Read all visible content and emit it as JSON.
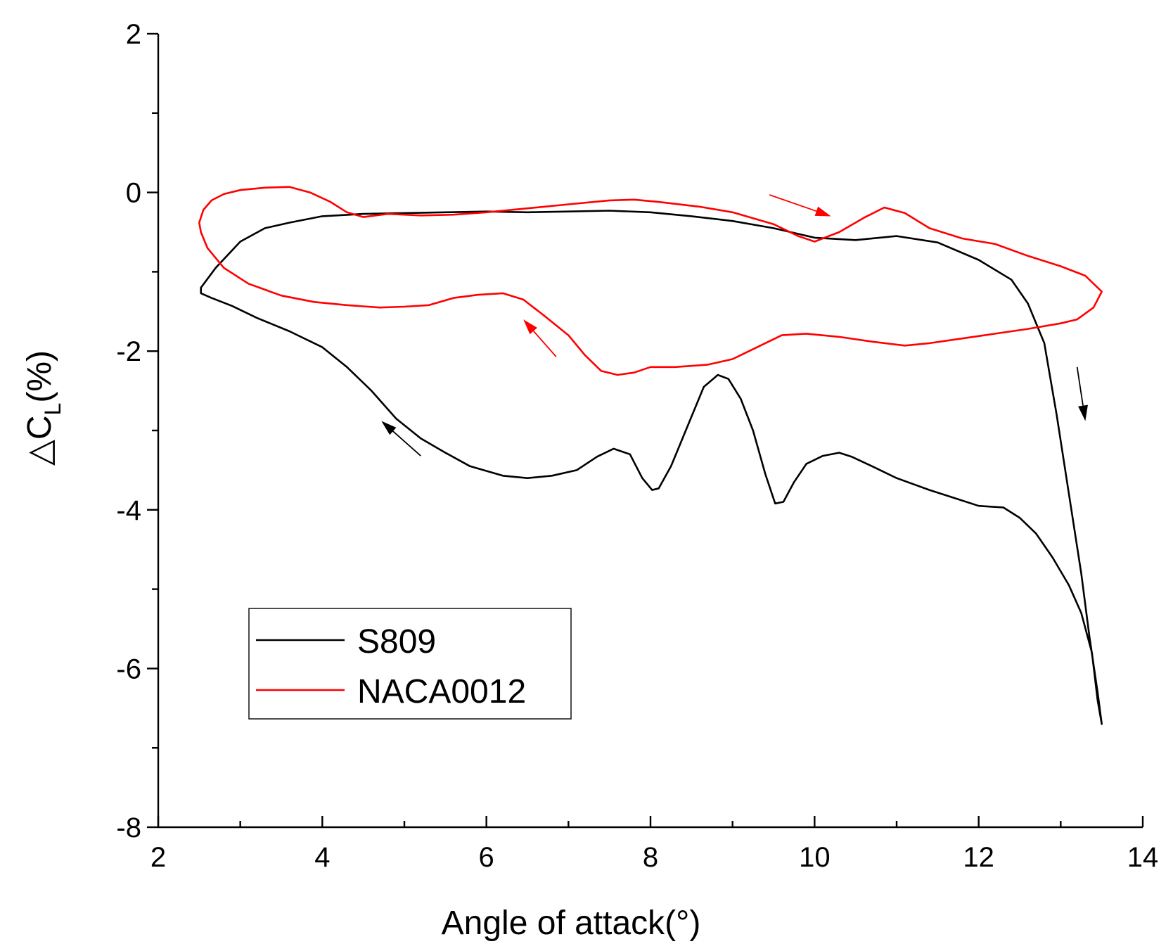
{
  "chart_data": {
    "type": "line",
    "title": "",
    "xlabel": "Angle of attack(°)",
    "ylabel_symbol": "△C",
    "ylabel_subscript": "L",
    "ylabel_suffix": "(%)",
    "xlim": [
      2,
      14
    ],
    "ylim": [
      -8,
      2
    ],
    "xticks": [
      2,
      4,
      6,
      8,
      10,
      12,
      14
    ],
    "yticks": [
      -8,
      -6,
      -4,
      -2,
      0,
      2
    ],
    "xtick_labels": [
      "2",
      "4",
      "6",
      "8",
      "10",
      "12",
      "14"
    ],
    "ytick_labels": [
      "-8",
      "-6",
      "-4",
      "-2",
      "0",
      "2"
    ],
    "grid": false,
    "legend_position": "lower-left",
    "series": [
      {
        "name": "S809",
        "color": "#000000",
        "points": [
          [
            2.52,
            -1.2
          ],
          [
            2.7,
            -0.95
          ],
          [
            3.0,
            -0.62
          ],
          [
            3.3,
            -0.45
          ],
          [
            3.6,
            -0.38
          ],
          [
            4.0,
            -0.3
          ],
          [
            4.5,
            -0.27
          ],
          [
            5.0,
            -0.26
          ],
          [
            5.5,
            -0.25
          ],
          [
            6.0,
            -0.24
          ],
          [
            6.5,
            -0.25
          ],
          [
            7.0,
            -0.24
          ],
          [
            7.5,
            -0.23
          ],
          [
            8.0,
            -0.25
          ],
          [
            8.5,
            -0.3
          ],
          [
            9.0,
            -0.36
          ],
          [
            9.5,
            -0.45
          ],
          [
            10.0,
            -0.57
          ],
          [
            10.5,
            -0.6
          ],
          [
            11.0,
            -0.55
          ],
          [
            11.5,
            -0.63
          ],
          [
            12.0,
            -0.85
          ],
          [
            12.4,
            -1.1
          ],
          [
            12.6,
            -1.4
          ],
          [
            12.8,
            -1.9
          ],
          [
            12.95,
            -2.8
          ],
          [
            13.1,
            -3.8
          ],
          [
            13.25,
            -4.8
          ],
          [
            13.35,
            -5.6
          ],
          [
            13.45,
            -6.3
          ],
          [
            13.5,
            -6.7
          ],
          [
            13.45,
            -6.4
          ],
          [
            13.38,
            -5.8
          ],
          [
            13.25,
            -5.3
          ],
          [
            13.1,
            -4.95
          ],
          [
            12.9,
            -4.6
          ],
          [
            12.7,
            -4.3
          ],
          [
            12.5,
            -4.1
          ],
          [
            12.3,
            -3.97
          ],
          [
            12.0,
            -3.95
          ],
          [
            11.7,
            -3.85
          ],
          [
            11.4,
            -3.75
          ],
          [
            11.0,
            -3.6
          ],
          [
            10.7,
            -3.45
          ],
          [
            10.45,
            -3.33
          ],
          [
            10.3,
            -3.28
          ],
          [
            10.1,
            -3.32
          ],
          [
            9.9,
            -3.42
          ],
          [
            9.75,
            -3.65
          ],
          [
            9.62,
            -3.9
          ],
          [
            9.52,
            -3.92
          ],
          [
            9.4,
            -3.55
          ],
          [
            9.25,
            -3.0
          ],
          [
            9.1,
            -2.6
          ],
          [
            8.95,
            -2.35
          ],
          [
            8.82,
            -2.3
          ],
          [
            8.65,
            -2.45
          ],
          [
            8.45,
            -2.95
          ],
          [
            8.25,
            -3.45
          ],
          [
            8.1,
            -3.73
          ],
          [
            8.02,
            -3.75
          ],
          [
            7.9,
            -3.6
          ],
          [
            7.75,
            -3.3
          ],
          [
            7.55,
            -3.23
          ],
          [
            7.35,
            -3.33
          ],
          [
            7.1,
            -3.5
          ],
          [
            6.8,
            -3.57
          ],
          [
            6.5,
            -3.6
          ],
          [
            6.2,
            -3.57
          ],
          [
            5.8,
            -3.45
          ],
          [
            5.5,
            -3.28
          ],
          [
            5.2,
            -3.1
          ],
          [
            4.9,
            -2.85
          ],
          [
            4.6,
            -2.5
          ],
          [
            4.3,
            -2.2
          ],
          [
            4.0,
            -1.95
          ],
          [
            3.6,
            -1.75
          ],
          [
            3.2,
            -1.58
          ],
          [
            2.9,
            -1.43
          ],
          [
            2.65,
            -1.33
          ],
          [
            2.52,
            -1.27
          ],
          [
            2.52,
            -1.2
          ]
        ]
      },
      {
        "name": "NACA0012",
        "color": "#ff0000",
        "points": [
          [
            2.5,
            -0.38
          ],
          [
            2.55,
            -0.22
          ],
          [
            2.65,
            -0.1
          ],
          [
            2.8,
            -0.02
          ],
          [
            3.0,
            0.03
          ],
          [
            3.3,
            0.06
          ],
          [
            3.6,
            0.07
          ],
          [
            3.85,
            0.0
          ],
          [
            4.1,
            -0.12
          ],
          [
            4.3,
            -0.25
          ],
          [
            4.5,
            -0.31
          ],
          [
            4.8,
            -0.27
          ],
          [
            5.2,
            -0.29
          ],
          [
            5.6,
            -0.28
          ],
          [
            6.0,
            -0.25
          ],
          [
            6.5,
            -0.2
          ],
          [
            7.0,
            -0.15
          ],
          [
            7.5,
            -0.1
          ],
          [
            7.8,
            -0.09
          ],
          [
            8.1,
            -0.12
          ],
          [
            8.6,
            -0.18
          ],
          [
            9.0,
            -0.25
          ],
          [
            9.5,
            -0.4
          ],
          [
            9.8,
            -0.55
          ],
          [
            10.0,
            -0.62
          ],
          [
            10.3,
            -0.5
          ],
          [
            10.6,
            -0.32
          ],
          [
            10.85,
            -0.19
          ],
          [
            11.1,
            -0.26
          ],
          [
            11.4,
            -0.45
          ],
          [
            11.8,
            -0.58
          ],
          [
            12.2,
            -0.65
          ],
          [
            12.6,
            -0.8
          ],
          [
            13.0,
            -0.93
          ],
          [
            13.3,
            -1.05
          ],
          [
            13.5,
            -1.25
          ],
          [
            13.4,
            -1.45
          ],
          [
            13.2,
            -1.6
          ],
          [
            13.0,
            -1.65
          ],
          [
            12.6,
            -1.72
          ],
          [
            12.2,
            -1.78
          ],
          [
            11.8,
            -1.84
          ],
          [
            11.4,
            -1.9
          ],
          [
            11.1,
            -1.93
          ],
          [
            10.7,
            -1.88
          ],
          [
            10.3,
            -1.82
          ],
          [
            9.9,
            -1.78
          ],
          [
            9.6,
            -1.8
          ],
          [
            9.3,
            -1.95
          ],
          [
            9.0,
            -2.1
          ],
          [
            8.7,
            -2.17
          ],
          [
            8.3,
            -2.2
          ],
          [
            8.0,
            -2.2
          ],
          [
            7.8,
            -2.27
          ],
          [
            7.6,
            -2.3
          ],
          [
            7.4,
            -2.25
          ],
          [
            7.2,
            -2.05
          ],
          [
            7.0,
            -1.8
          ],
          [
            6.7,
            -1.55
          ],
          [
            6.45,
            -1.35
          ],
          [
            6.2,
            -1.27
          ],
          [
            5.9,
            -1.29
          ],
          [
            5.6,
            -1.33
          ],
          [
            5.3,
            -1.42
          ],
          [
            5.0,
            -1.44
          ],
          [
            4.7,
            -1.45
          ],
          [
            4.3,
            -1.42
          ],
          [
            3.9,
            -1.38
          ],
          [
            3.5,
            -1.3
          ],
          [
            3.1,
            -1.15
          ],
          [
            2.8,
            -0.95
          ],
          [
            2.6,
            -0.7
          ],
          [
            2.52,
            -0.5
          ],
          [
            2.5,
            -0.38
          ]
        ]
      }
    ],
    "arrows": [
      {
        "color": "#ff0000",
        "from": [
          9.45,
          -0.03
        ],
        "to": [
          10.2,
          -0.3
        ]
      },
      {
        "color": "#ff0000",
        "from": [
          6.85,
          -2.07
        ],
        "to": [
          6.45,
          -1.6
        ]
      },
      {
        "color": "#000000",
        "from": [
          13.2,
          -2.2
        ],
        "to": [
          13.3,
          -2.88
        ]
      },
      {
        "color": "#000000",
        "from": [
          5.2,
          -3.32
        ],
        "to": [
          4.72,
          -2.88
        ]
      }
    ]
  }
}
